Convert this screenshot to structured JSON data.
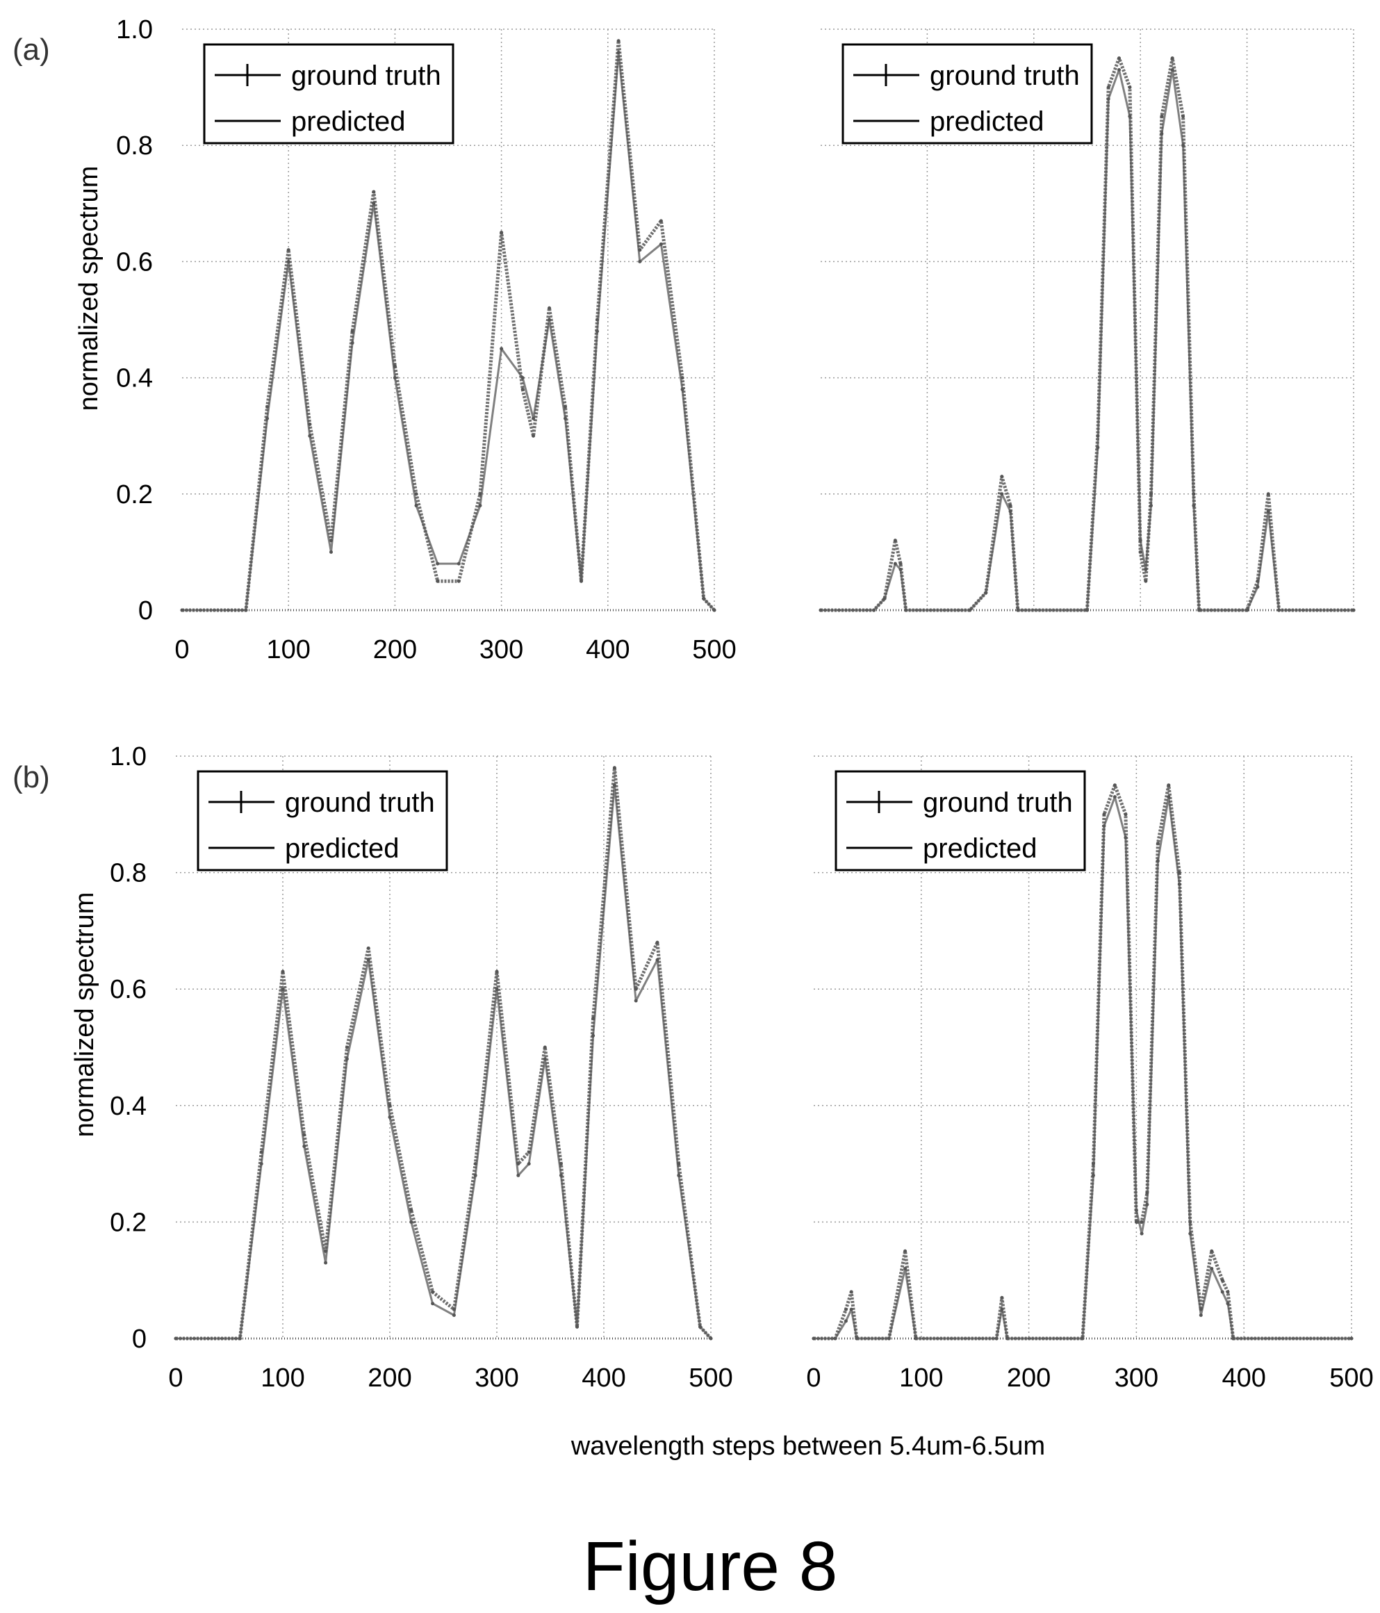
{
  "figure_caption": "Figure 8",
  "x_axis_label": "wavelength steps between 5.4um-6.5um",
  "colors": {
    "line": "#555555",
    "grid": "#999999",
    "axis": "#000000"
  },
  "chart_data": [
    {
      "id": "a-left",
      "panel_label": "(a)",
      "type": "line",
      "xlim": [
        0,
        500
      ],
      "ylim": [
        0,
        1.0
      ],
      "ylabel": "normalized spectrum",
      "xticks": [
        "0",
        "100",
        "200",
        "300",
        "400",
        "500"
      ],
      "yticks": [
        "0",
        "0.2",
        "0.4",
        "0.6",
        "0.8",
        "1.0"
      ],
      "grid": true,
      "legend": {
        "position": "top-left",
        "entries": [
          "ground truth",
          "predicted"
        ]
      },
      "series": [
        {
          "name": "ground truth",
          "x": [
            0,
            60,
            80,
            100,
            120,
            140,
            160,
            180,
            200,
            220,
            240,
            260,
            280,
            300,
            320,
            330,
            345,
            360,
            375,
            390,
            410,
            430,
            450,
            470,
            490,
            500
          ],
          "y": [
            0,
            0,
            0.35,
            0.62,
            0.32,
            0.12,
            0.48,
            0.72,
            0.42,
            0.2,
            0.05,
            0.05,
            0.2,
            0.65,
            0.38,
            0.3,
            0.52,
            0.35,
            0.05,
            0.5,
            0.98,
            0.62,
            0.67,
            0.4,
            0.02,
            0
          ]
        },
        {
          "name": "predicted",
          "x": [
            0,
            60,
            80,
            100,
            120,
            140,
            160,
            180,
            200,
            220,
            240,
            260,
            280,
            300,
            320,
            330,
            345,
            360,
            375,
            390,
            410,
            430,
            450,
            470,
            490,
            500
          ],
          "y": [
            0,
            0,
            0.33,
            0.6,
            0.3,
            0.1,
            0.46,
            0.7,
            0.4,
            0.18,
            0.08,
            0.08,
            0.18,
            0.45,
            0.4,
            0.33,
            0.5,
            0.33,
            0.05,
            0.48,
            0.96,
            0.6,
            0.63,
            0.38,
            0.02,
            0
          ]
        }
      ]
    },
    {
      "id": "a-right",
      "panel_label": "",
      "type": "line",
      "xlim": [
        0,
        500
      ],
      "ylim": [
        0,
        1.0
      ],
      "ylabel": "",
      "xticks": [],
      "yticks": [],
      "grid": true,
      "legend": {
        "position": "top-left",
        "entries": [
          "ground truth",
          "predicted"
        ]
      },
      "series": [
        {
          "name": "ground truth",
          "x": [
            0,
            50,
            60,
            70,
            75,
            80,
            140,
            155,
            170,
            178,
            185,
            250,
            260,
            270,
            280,
            290,
            300,
            305,
            310,
            320,
            330,
            340,
            350,
            355,
            400,
            410,
            420,
            430,
            500
          ],
          "y": [
            0,
            0,
            0.02,
            0.12,
            0.08,
            0,
            0,
            0.03,
            0.23,
            0.18,
            0,
            0,
            0.3,
            0.9,
            0.95,
            0.9,
            0.1,
            0.05,
            0.2,
            0.85,
            0.95,
            0.85,
            0.2,
            0,
            0,
            0.05,
            0.2,
            0,
            0
          ]
        },
        {
          "name": "predicted",
          "x": [
            0,
            50,
            60,
            70,
            75,
            80,
            140,
            155,
            170,
            178,
            185,
            250,
            260,
            270,
            280,
            290,
            300,
            305,
            310,
            320,
            330,
            340,
            350,
            355,
            400,
            410,
            420,
            430,
            500
          ],
          "y": [
            0,
            0,
            0.02,
            0.08,
            0.07,
            0,
            0,
            0.03,
            0.2,
            0.17,
            0,
            0,
            0.28,
            0.88,
            0.93,
            0.85,
            0.12,
            0.07,
            0.18,
            0.82,
            0.93,
            0.8,
            0.18,
            0,
            0,
            0.04,
            0.17,
            0,
            0
          ]
        }
      ]
    },
    {
      "id": "b-left",
      "panel_label": "(b)",
      "type": "line",
      "xlim": [
        0,
        500
      ],
      "ylim": [
        0,
        1.0
      ],
      "ylabel": "normalized spectrum",
      "xticks": [
        "0",
        "100",
        "200",
        "300",
        "400",
        "500"
      ],
      "yticks": [
        "0",
        "0.2",
        "0.4",
        "0.6",
        "0.8",
        "1.0"
      ],
      "grid": true,
      "legend": {
        "position": "top-left",
        "entries": [
          "ground truth",
          "predicted"
        ]
      },
      "series": [
        {
          "name": "ground truth",
          "x": [
            0,
            60,
            80,
            100,
            120,
            140,
            160,
            180,
            200,
            220,
            240,
            260,
            280,
            300,
            320,
            330,
            345,
            360,
            375,
            390,
            410,
            430,
            450,
            470,
            490,
            500
          ],
          "y": [
            0,
            0,
            0.32,
            0.63,
            0.35,
            0.15,
            0.5,
            0.67,
            0.4,
            0.22,
            0.08,
            0.05,
            0.3,
            0.63,
            0.3,
            0.32,
            0.5,
            0.3,
            0.02,
            0.55,
            0.98,
            0.6,
            0.68,
            0.3,
            0.02,
            0
          ]
        },
        {
          "name": "predicted",
          "x": [
            0,
            60,
            80,
            100,
            120,
            140,
            160,
            180,
            200,
            220,
            240,
            260,
            280,
            300,
            320,
            330,
            345,
            360,
            375,
            390,
            410,
            430,
            450,
            470,
            490,
            500
          ],
          "y": [
            0,
            0,
            0.3,
            0.6,
            0.33,
            0.13,
            0.48,
            0.65,
            0.38,
            0.2,
            0.06,
            0.04,
            0.28,
            0.6,
            0.28,
            0.3,
            0.48,
            0.28,
            0.02,
            0.52,
            0.95,
            0.58,
            0.65,
            0.28,
            0.02,
            0
          ]
        }
      ]
    },
    {
      "id": "b-right",
      "panel_label": "",
      "type": "line",
      "xlim": [
        0,
        500
      ],
      "ylim": [
        0,
        1.0
      ],
      "ylabel": "",
      "xticks": [
        "0",
        "100",
        "200",
        "300",
        "400",
        "500"
      ],
      "yticks": [],
      "grid": true,
      "legend": {
        "position": "top-left",
        "entries": [
          "ground truth",
          "predicted"
        ]
      },
      "series": [
        {
          "name": "ground truth",
          "x": [
            0,
            20,
            30,
            35,
            40,
            70,
            85,
            95,
            170,
            175,
            180,
            250,
            260,
            270,
            280,
            290,
            300,
            305,
            310,
            320,
            330,
            340,
            350,
            360,
            370,
            380,
            385,
            390,
            500
          ],
          "y": [
            0,
            0,
            0.05,
            0.08,
            0,
            0,
            0.15,
            0,
            0,
            0.07,
            0,
            0,
            0.3,
            0.9,
            0.95,
            0.9,
            0.2,
            0.2,
            0.25,
            0.85,
            0.95,
            0.8,
            0.2,
            0.05,
            0.15,
            0.1,
            0.08,
            0,
            0
          ]
        },
        {
          "name": "predicted",
          "x": [
            0,
            20,
            30,
            35,
            40,
            70,
            85,
            95,
            170,
            175,
            180,
            250,
            260,
            270,
            280,
            290,
            300,
            305,
            310,
            320,
            330,
            340,
            350,
            360,
            370,
            380,
            385,
            390,
            500
          ],
          "y": [
            0,
            0,
            0.03,
            0.05,
            0,
            0,
            0.12,
            0,
            0,
            0.05,
            0,
            0,
            0.28,
            0.88,
            0.93,
            0.86,
            0.22,
            0.18,
            0.23,
            0.82,
            0.93,
            0.78,
            0.18,
            0.04,
            0.12,
            0.08,
            0.06,
            0,
            0
          ]
        }
      ]
    }
  ]
}
